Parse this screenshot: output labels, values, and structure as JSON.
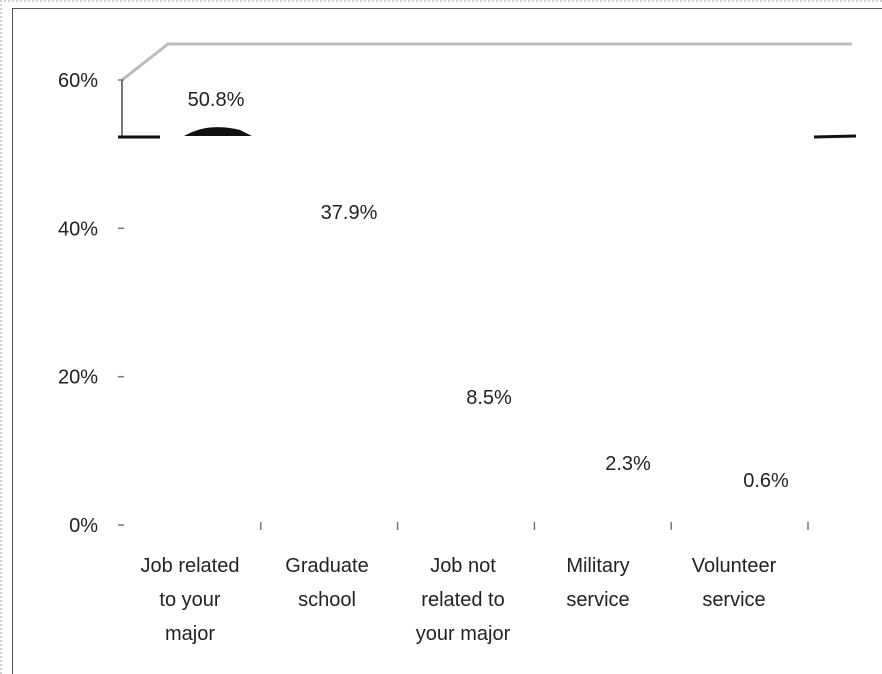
{
  "chart_data": {
    "type": "bar",
    "categories": [
      [
        "Job related",
        "to your",
        "major"
      ],
      [
        "Graduate",
        "school"
      ],
      [
        "Job not",
        "related to",
        "your major"
      ],
      [
        "Military",
        "service"
      ],
      [
        "Volunteer",
        "service"
      ]
    ],
    "values": [
      50.8,
      37.9,
      8.5,
      2.3,
      0.6
    ],
    "value_labels": [
      "50.8%",
      "37.9%",
      "8.5%",
      "2.3%",
      "0.6%"
    ],
    "y_ticks": [
      {
        "value": 0,
        "label": "0%"
      },
      {
        "value": 20,
        "label": "20%"
      },
      {
        "value": 40,
        "label": "40%"
      },
      {
        "value": 60,
        "label": "60%"
      }
    ],
    "ylim": [
      0,
      60
    ],
    "title": "",
    "xlabel": "",
    "ylabel": "",
    "grid": false,
    "legend": "none",
    "colors": {
      "text": "#222222",
      "axis": "#777777",
      "wall_edge": "#bbbbbb",
      "frame": "#555555"
    }
  }
}
